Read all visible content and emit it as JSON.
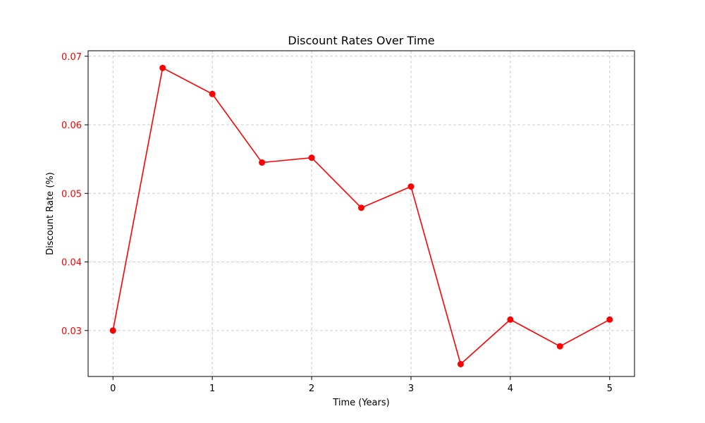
{
  "chart_data": {
    "type": "line",
    "title": "Discount Rates Over Time",
    "xlabel": "Time (Years)",
    "ylabel": "Discount Rate (%)",
    "xlim": [
      -0.25,
      5.25
    ],
    "ylim": [
      0.0233,
      0.0708
    ],
    "x_ticks": [
      0,
      1,
      2,
      3,
      4,
      5
    ],
    "x_tick_labels": [
      "0",
      "1",
      "2",
      "3",
      "4",
      "5"
    ],
    "y_ticks": [
      0.03,
      0.04,
      0.05,
      0.06,
      0.07
    ],
    "y_tick_labels": [
      "0.03",
      "0.04",
      "0.05",
      "0.06",
      "0.07"
    ],
    "grid": true,
    "series": [
      {
        "x": [
          0,
          0.5,
          1,
          1.5,
          2,
          2.5,
          3,
          3.5,
          4,
          4.5,
          5
        ],
        "values": [
          0.03,
          0.0683,
          0.0645,
          0.0545,
          0.0552,
          0.0479,
          0.051,
          0.0251,
          0.0316,
          0.0277,
          0.0316
        ],
        "color": "#ff0000",
        "marker": "circle"
      }
    ],
    "colors": {
      "line": "#ff0000",
      "ylabel": "#ff0000",
      "ytick_labels": "#ff0000",
      "xtick_labels": "#000000",
      "grid": "#cccccc",
      "axes": "#000000"
    }
  }
}
